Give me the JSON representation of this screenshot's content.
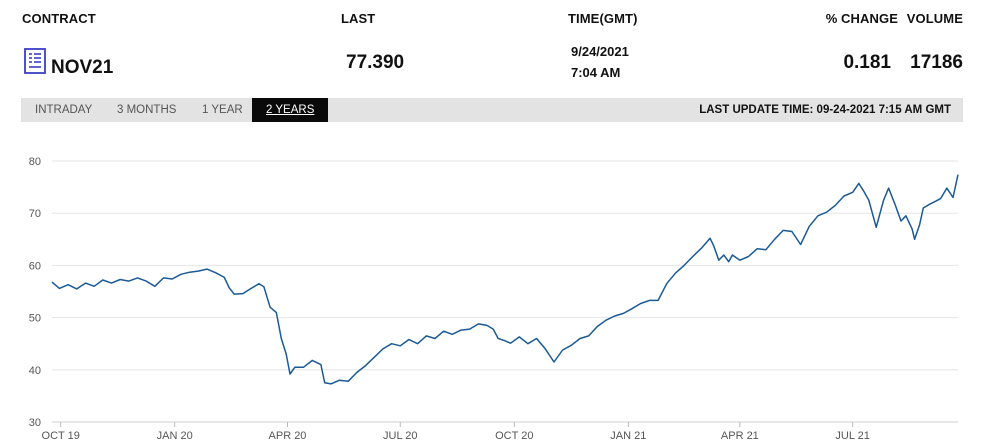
{
  "header": {
    "contract_label": "CONTRACT",
    "last_label": "LAST",
    "time_label": "TIME(GMT)",
    "change_label": "% CHANGE",
    "volume_label": "VOLUME"
  },
  "quote": {
    "contract": "NOV21",
    "last": "77.390",
    "date": "9/24/2021",
    "time": "7:04 AM",
    "change": "0.181",
    "volume": "17186"
  },
  "tabs": [
    "INTRADAY",
    "3 MONTHS",
    "1 YEAR",
    "2 YEARS"
  ],
  "active_tab": "2 YEARS",
  "last_update": "LAST UPDATE TIME: 09-24-2021 7:15 AM GMT",
  "colors": {
    "line": "#1a5a96",
    "grid": "#e6e6e6",
    "active_tab_bg": "#0a0a0a",
    "tab_bar_bg": "#e3e3e3",
    "icon": "#3a3fc4"
  },
  "icons": {
    "contract": "document-list-icon"
  },
  "chart_data": {
    "type": "line",
    "ylim": [
      30,
      80
    ],
    "yticks": [
      30,
      40,
      50,
      60,
      70,
      80
    ],
    "xlim": [
      "2019-09-24",
      "2021-09-24"
    ],
    "xticks": [
      {
        "label": "OCT 19",
        "date": "2019-10-01"
      },
      {
        "label": "JAN 20",
        "date": "2020-01-01"
      },
      {
        "label": "APR 20",
        "date": "2020-04-01"
      },
      {
        "label": "JUL 20",
        "date": "2020-07-01"
      },
      {
        "label": "OCT 20",
        "date": "2020-10-01"
      },
      {
        "label": "JAN 21",
        "date": "2021-01-01"
      },
      {
        "label": "APR 21",
        "date": "2021-04-01"
      },
      {
        "label": "JUL 21",
        "date": "2021-07-01"
      }
    ],
    "grid": true,
    "series": [
      {
        "points": [
          [
            "2019-09-24",
            56.8
          ],
          [
            "2019-09-30",
            55.6
          ],
          [
            "2019-10-07",
            56.3
          ],
          [
            "2019-10-14",
            55.5
          ],
          [
            "2019-10-21",
            56.6
          ],
          [
            "2019-10-28",
            56.0
          ],
          [
            "2019-11-04",
            57.2
          ],
          [
            "2019-11-11",
            56.6
          ],
          [
            "2019-11-18",
            57.3
          ],
          [
            "2019-11-25",
            57.0
          ],
          [
            "2019-12-02",
            57.6
          ],
          [
            "2019-12-09",
            57.0
          ],
          [
            "2019-12-16",
            56.0
          ],
          [
            "2019-12-23",
            57.6
          ],
          [
            "2019-12-30",
            57.4
          ],
          [
            "2020-01-06",
            58.3
          ],
          [
            "2020-01-13",
            58.7
          ],
          [
            "2020-01-20",
            58.9
          ],
          [
            "2020-01-27",
            59.3
          ],
          [
            "2020-02-03",
            58.6
          ],
          [
            "2020-02-10",
            57.7
          ],
          [
            "2020-02-14",
            55.7
          ],
          [
            "2020-02-18",
            54.5
          ],
          [
            "2020-02-25",
            54.6
          ],
          [
            "2020-03-02",
            55.5
          ],
          [
            "2020-03-09",
            56.5
          ],
          [
            "2020-03-13",
            55.9
          ],
          [
            "2020-03-18",
            52.0
          ],
          [
            "2020-03-23",
            51.0
          ],
          [
            "2020-03-27",
            46.0
          ],
          [
            "2020-03-31",
            43.0
          ],
          [
            "2020-04-03",
            39.2
          ],
          [
            "2020-04-07",
            40.5
          ],
          [
            "2020-04-14",
            40.5
          ],
          [
            "2020-04-21",
            41.8
          ],
          [
            "2020-04-28",
            41.0
          ],
          [
            "2020-05-01",
            37.5
          ],
          [
            "2020-05-06",
            37.3
          ],
          [
            "2020-05-13",
            38.0
          ],
          [
            "2020-05-20",
            37.8
          ],
          [
            "2020-05-27",
            39.5
          ],
          [
            "2020-06-03",
            40.8
          ],
          [
            "2020-06-10",
            42.4
          ],
          [
            "2020-06-17",
            44.0
          ],
          [
            "2020-06-24",
            45.0
          ],
          [
            "2020-07-01",
            44.6
          ],
          [
            "2020-07-08",
            45.8
          ],
          [
            "2020-07-15",
            45.0
          ],
          [
            "2020-07-22",
            46.5
          ],
          [
            "2020-07-29",
            46.0
          ],
          [
            "2020-08-05",
            47.4
          ],
          [
            "2020-08-12",
            46.8
          ],
          [
            "2020-08-19",
            47.6
          ],
          [
            "2020-08-26",
            47.8
          ],
          [
            "2020-09-02",
            48.8
          ],
          [
            "2020-09-09",
            48.5
          ],
          [
            "2020-09-14",
            47.8
          ],
          [
            "2020-09-18",
            46.0
          ],
          [
            "2020-09-23",
            45.6
          ],
          [
            "2020-09-28",
            45.1
          ],
          [
            "2020-10-05",
            46.3
          ],
          [
            "2020-10-12",
            45.0
          ],
          [
            "2020-10-19",
            46.0
          ],
          [
            "2020-10-26",
            44.0
          ],
          [
            "2020-11-02",
            41.5
          ],
          [
            "2020-11-09",
            43.8
          ],
          [
            "2020-11-16",
            44.7
          ],
          [
            "2020-11-23",
            46.0
          ],
          [
            "2020-11-30",
            46.5
          ],
          [
            "2020-12-07",
            48.3
          ],
          [
            "2020-12-14",
            49.5
          ],
          [
            "2020-12-21",
            50.3
          ],
          [
            "2020-12-28",
            50.8
          ],
          [
            "2021-01-04",
            51.7
          ],
          [
            "2021-01-11",
            52.7
          ],
          [
            "2021-01-18",
            53.3
          ],
          [
            "2021-01-25",
            53.3
          ],
          [
            "2021-02-01",
            56.5
          ],
          [
            "2021-02-08",
            58.5
          ],
          [
            "2021-02-15",
            60.0
          ],
          [
            "2021-02-22",
            61.7
          ],
          [
            "2021-03-01",
            63.3
          ],
          [
            "2021-03-08",
            65.2
          ],
          [
            "2021-03-11",
            63.7
          ],
          [
            "2021-03-15",
            61.0
          ],
          [
            "2021-03-19",
            62.0
          ],
          [
            "2021-03-23",
            60.7
          ],
          [
            "2021-03-26",
            62.0
          ],
          [
            "2021-04-01",
            61.0
          ],
          [
            "2021-04-08",
            61.7
          ],
          [
            "2021-04-15",
            63.2
          ],
          [
            "2021-04-22",
            63.0
          ],
          [
            "2021-04-29",
            65.0
          ],
          [
            "2021-05-06",
            66.7
          ],
          [
            "2021-05-13",
            66.5
          ],
          [
            "2021-05-20",
            64.0
          ],
          [
            "2021-05-27",
            67.5
          ],
          [
            "2021-06-03",
            69.5
          ],
          [
            "2021-06-10",
            70.2
          ],
          [
            "2021-06-17",
            71.5
          ],
          [
            "2021-06-24",
            73.3
          ],
          [
            "2021-07-01",
            74.0
          ],
          [
            "2021-07-06",
            75.7
          ],
          [
            "2021-07-10",
            74.2
          ],
          [
            "2021-07-14",
            72.5
          ],
          [
            "2021-07-20",
            67.3
          ],
          [
            "2021-07-26",
            72.5
          ],
          [
            "2021-07-30",
            74.8
          ],
          [
            "2021-08-04",
            71.8
          ],
          [
            "2021-08-09",
            68.5
          ],
          [
            "2021-08-13",
            69.5
          ],
          [
            "2021-08-18",
            67.0
          ],
          [
            "2021-08-20",
            65.0
          ],
          [
            "2021-08-24",
            67.8
          ],
          [
            "2021-08-27",
            71.0
          ],
          [
            "2021-09-01",
            71.7
          ],
          [
            "2021-09-06",
            72.3
          ],
          [
            "2021-09-10",
            72.8
          ],
          [
            "2021-09-15",
            74.8
          ],
          [
            "2021-09-20",
            73.0
          ],
          [
            "2021-09-24",
            77.4
          ]
        ]
      }
    ]
  }
}
